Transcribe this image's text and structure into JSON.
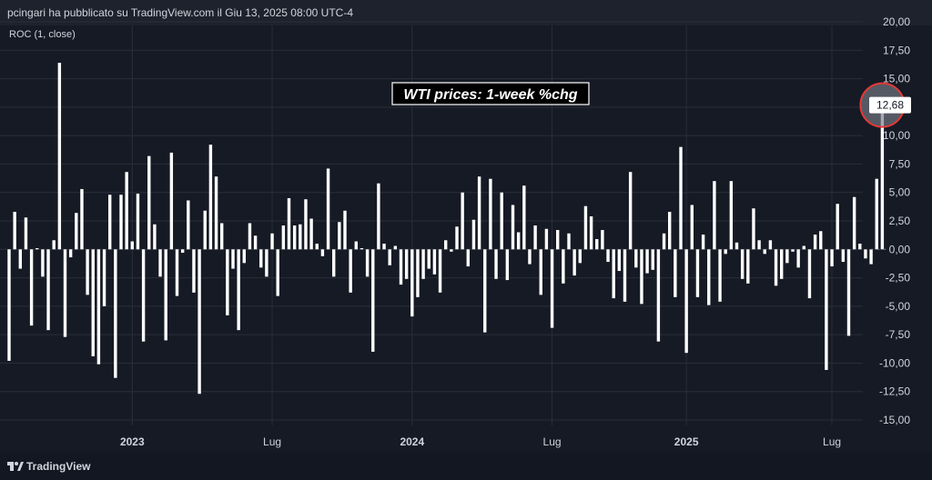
{
  "header": {
    "attribution": "pcingari ha pubblicato su TradingView.com il Giu 13, 2025 08:00 UTC-4"
  },
  "footer": {
    "brand": "TradingView"
  },
  "colors": {
    "background": "#161a25",
    "bar": "#ffffff",
    "grid": "#2a2e39",
    "text": "#d1d4dc",
    "highlight_ring": "#e53935"
  },
  "chart_data": {
    "type": "bar",
    "indicator_label": "ROC (1, close)",
    "annotation": "WTI prices: 1-week %chg",
    "last_value_label": "12,68",
    "ylim": [
      -15,
      20
    ],
    "y_ticks": [
      "20,00",
      "17,50",
      "15,00",
      "12,50",
      "10,00",
      "7,50",
      "5,00",
      "2,50",
      "0,00",
      "-2,50",
      "-5,00",
      "-7,50",
      "-10,00",
      "-12,50",
      "-15,00"
    ],
    "x_tick_labels": [
      "2023",
      "Lug",
      "2024",
      "Lug",
      "2025",
      "Lug"
    ],
    "grid": true,
    "values": [
      -9.8,
      3.3,
      -1.7,
      2.8,
      -6.7,
      0.1,
      -2.4,
      -7.1,
      0.8,
      16.4,
      -7.7,
      -0.7,
      3.2,
      5.3,
      -4.0,
      -9.4,
      -10.1,
      -5.0,
      4.8,
      -11.3,
      4.8,
      6.8,
      0.7,
      4.9,
      -8.1,
      8.2,
      2.2,
      -2.4,
      -8.0,
      8.5,
      -4.1,
      -0.3,
      4.3,
      -3.8,
      -12.7,
      3.4,
      9.2,
      6.4,
      2.3,
      -5.8,
      -1.7,
      -7.1,
      -1.2,
      2.3,
      1.2,
      -1.6,
      -2.4,
      1.4,
      -4.1,
      2.1,
      4.5,
      2.1,
      2.2,
      4.4,
      2.7,
      0.5,
      -0.6,
      7.1,
      -2.4,
      2.4,
      3.4,
      -3.8,
      0.7,
      0.1,
      -2.4,
      -9.0,
      5.8,
      0.5,
      -1.4,
      0.3,
      -3.1,
      -2.6,
      -5.9,
      -4.2,
      -2.6,
      -1.7,
      -2.2,
      -3.8,
      0.8,
      -0.2,
      2.0,
      5.0,
      -1.5,
      2.6,
      6.4,
      -7.3,
      6.2,
      -2.6,
      5.0,
      -2.7,
      3.9,
      1.5,
      5.6,
      -1.3,
      2.1,
      -4.0,
      1.8,
      -6.9,
      1.7,
      -3.0,
      1.4,
      -2.3,
      -1.2,
      3.8,
      2.9,
      0.9,
      1.7,
      -1.1,
      -4.3,
      -1.9,
      -4.6,
      6.8,
      -1.6,
      -4.8,
      -2.1,
      -1.8,
      -8.1,
      1.4,
      3.3,
      -4.2,
      9.0,
      -9.1,
      3.9,
      -4.2,
      1.3,
      -4.9,
      6.0,
      -4.6,
      -0.4,
      6.0,
      0.6,
      -2.6,
      -3.0,
      3.6,
      0.8,
      -0.4,
      0.8,
      -3.2,
      -2.6,
      -1.2,
      -0.2,
      -1.6,
      0.3,
      -4.3,
      1.3,
      1.6,
      -10.6,
      -1.5,
      4.0,
      -1.1,
      -7.6,
      4.6,
      0.5,
      -0.8,
      -1.3,
      6.2,
      12.68
    ],
    "x_tick_positions": [
      22,
      47,
      72,
      97,
      121,
      147
    ]
  }
}
